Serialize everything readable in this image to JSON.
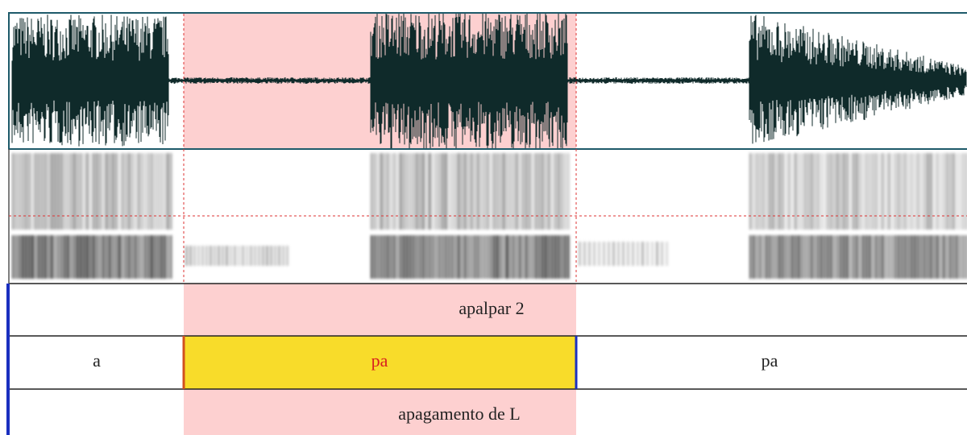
{
  "tiers": [
    {
      "intervals": [
        {
          "text": "apalpar 2"
        }
      ]
    },
    {
      "intervals": [
        {
          "text": "a"
        },
        {
          "text": "pa"
        },
        {
          "text": "pa"
        }
      ]
    },
    {
      "intervals": [
        {
          "text": "apagamento de L"
        }
      ]
    }
  ]
}
